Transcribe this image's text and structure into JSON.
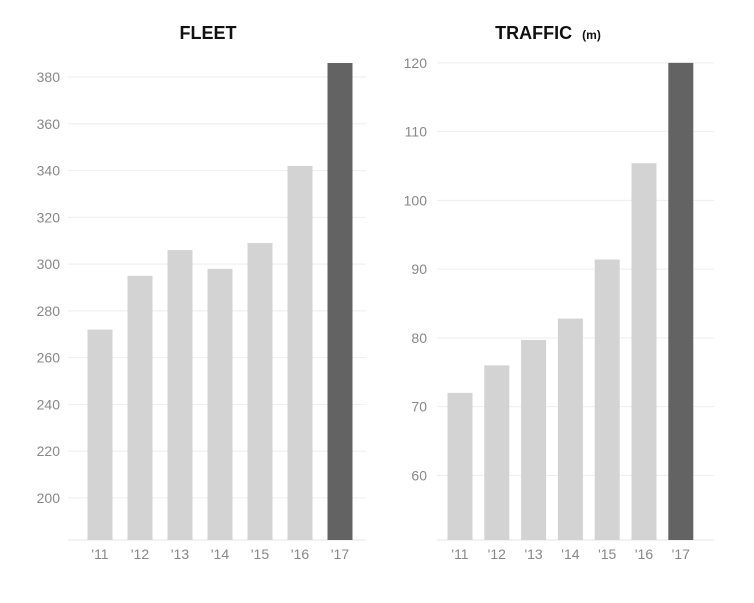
{
  "chart_data": [
    {
      "type": "bar",
      "title": "FLEET",
      "unit": "",
      "xlabel": "",
      "ylabel": "",
      "categories": [
        "'11",
        "'12",
        "'13",
        "'14",
        "'15",
        "'16",
        "'17"
      ],
      "values": [
        272,
        295,
        306,
        298,
        309,
        342,
        386
      ],
      "yticks": [
        200,
        220,
        240,
        260,
        280,
        300,
        320,
        340,
        360,
        380
      ],
      "ylim": [
        182,
        389
      ],
      "grid": true,
      "colors": {
        "bar": "#d3d3d3",
        "highlight": "#636363",
        "highlight_category": "'17"
      }
    },
    {
      "type": "bar",
      "title": "TRAFFIC",
      "unit": "(m)",
      "xlabel": "",
      "ylabel": "",
      "categories": [
        "'11",
        "'12",
        "'13",
        "'14",
        "'15",
        "'16",
        "'17"
      ],
      "values": [
        72,
        76,
        79.7,
        82.8,
        91.4,
        105.4,
        120
      ],
      "yticks": [
        60,
        70,
        80,
        90,
        100,
        110,
        120
      ],
      "ylim": [
        50.6,
        121
      ],
      "grid": true,
      "colors": {
        "bar": "#d3d3d3",
        "highlight": "#636363",
        "highlight_category": "'17"
      }
    }
  ]
}
